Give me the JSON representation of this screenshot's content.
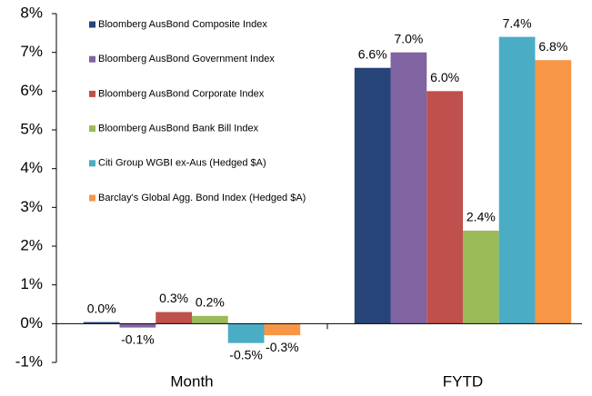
{
  "chart_data": {
    "type": "bar",
    "categories": [
      "Month",
      "FYTD"
    ],
    "series": [
      {
        "name": "Bloomberg AusBond Composite Index",
        "color": "#264478",
        "values": [
          0.04,
          6.6
        ],
        "value_labels": [
          "0.0%",
          "6.6%"
        ]
      },
      {
        "name": "Bloomberg AusBond Government Index",
        "color": "#8064a2",
        "values": [
          -0.1,
          7.0
        ],
        "value_labels": [
          "-0.1%",
          "7.0%"
        ]
      },
      {
        "name": "Bloomberg AusBond Corporate Index",
        "color": "#c0504d",
        "values": [
          0.3,
          6.0
        ],
        "value_labels": [
          "0.3%",
          "6.0%"
        ]
      },
      {
        "name": "Bloomberg AusBond Bank Bill Index",
        "color": "#9bbb59",
        "values": [
          0.2,
          2.4
        ],
        "value_labels": [
          "0.2%",
          "2.4%"
        ]
      },
      {
        "name": "Citi Group WGBI ex-Aus (Hedged $A)",
        "color": "#4bacc6",
        "values": [
          -0.5,
          7.4
        ],
        "value_labels": [
          "-0.5%",
          "7.4%"
        ]
      },
      {
        "name": "Barclay's Global Agg. Bond Index (Hedged $A)",
        "color": "#f79646",
        "values": [
          -0.3,
          6.8
        ],
        "value_labels": [
          "-0.3%",
          "6.8%"
        ]
      }
    ],
    "ylim": [
      -1,
      8
    ],
    "yticks": [
      {
        "value": -1,
        "label": "-1%"
      },
      {
        "value": 0,
        "label": "0%"
      },
      {
        "value": 1,
        "label": "1%"
      },
      {
        "value": 2,
        "label": "2%"
      },
      {
        "value": 3,
        "label": "3%"
      },
      {
        "value": 4,
        "label": "4%"
      },
      {
        "value": 5,
        "label": "5%"
      },
      {
        "value": 6,
        "label": "6%"
      },
      {
        "value": 7,
        "label": "7%"
      },
      {
        "value": 8,
        "label": "8%"
      }
    ],
    "legend": "upper left"
  }
}
